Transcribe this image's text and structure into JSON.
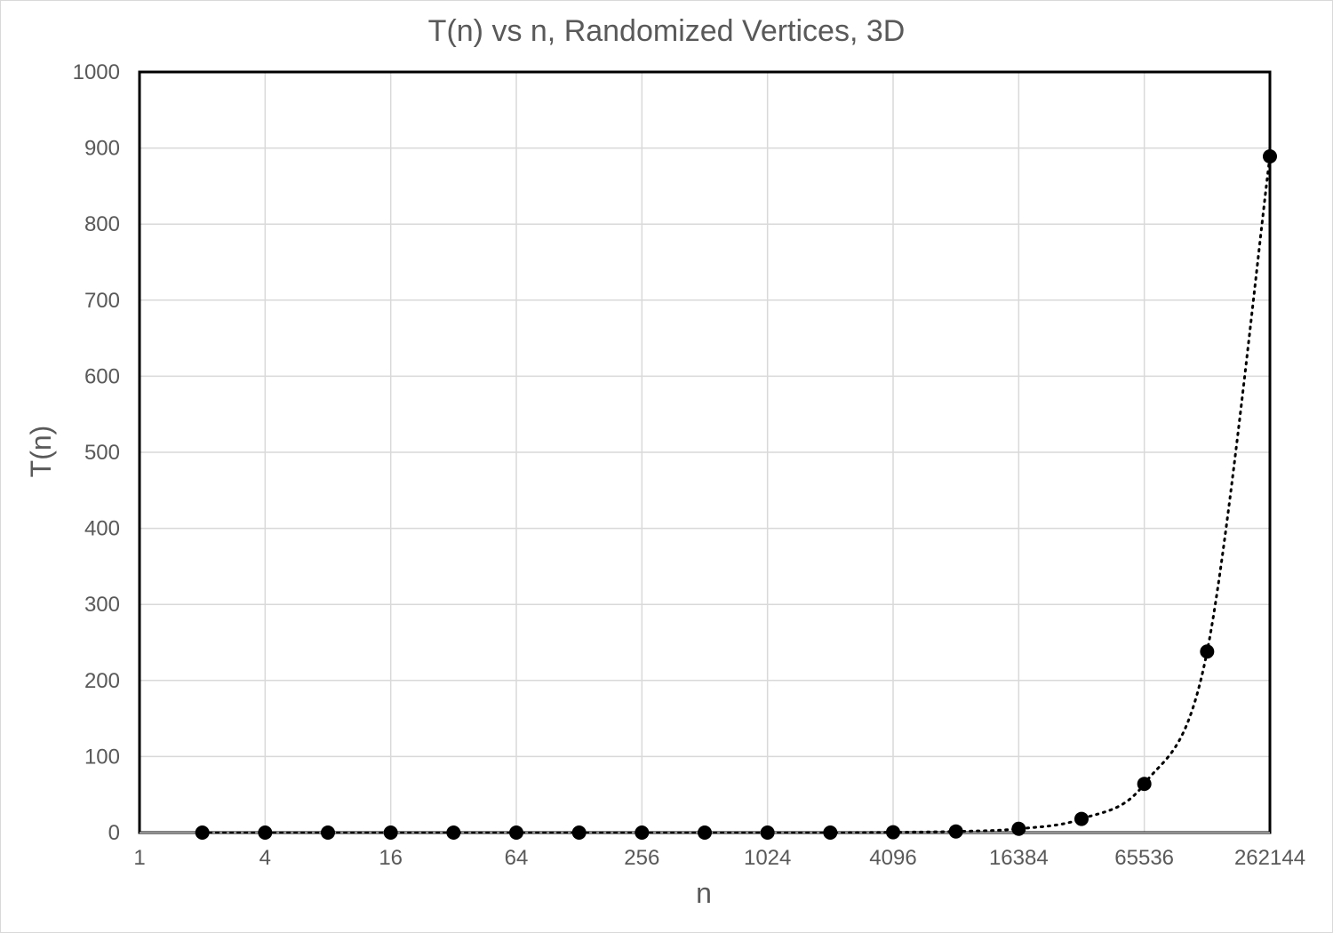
{
  "chart_data": {
    "type": "scatter",
    "title": "T(n) vs n, Randomized Vertices, 3D",
    "xlabel": "n",
    "ylabel": "T(n)",
    "x_scale": "log2",
    "xlim": [
      1,
      262144
    ],
    "ylim": [
      0,
      1000
    ],
    "x_ticks": [
      1,
      4,
      16,
      64,
      256,
      1024,
      4096,
      16384,
      65536,
      262144
    ],
    "x_tick_labels": [
      "1",
      "4",
      "16",
      "64",
      "256",
      "1024",
      "4096",
      "16384",
      "65536",
      "262144"
    ],
    "y_ticks": [
      0,
      100,
      200,
      300,
      400,
      500,
      600,
      700,
      800,
      900,
      1000
    ],
    "y_tick_labels": [
      "0",
      "100",
      "200",
      "300",
      "400",
      "500",
      "600",
      "700",
      "800",
      "900",
      "1000"
    ],
    "grid": true,
    "legend": "none",
    "trendline": "dotted",
    "series": [
      {
        "x": [
          2,
          4,
          8,
          16,
          32,
          64,
          128,
          256,
          512,
          1024,
          2048,
          4096,
          8192,
          16384,
          32768,
          65536,
          131072,
          262144
        ],
        "y": [
          0,
          0,
          0,
          0,
          0,
          0,
          0,
          0,
          0,
          0,
          0,
          0.5,
          1.5,
          5,
          18,
          64,
          238,
          889
        ],
        "color": "#000000"
      }
    ]
  }
}
